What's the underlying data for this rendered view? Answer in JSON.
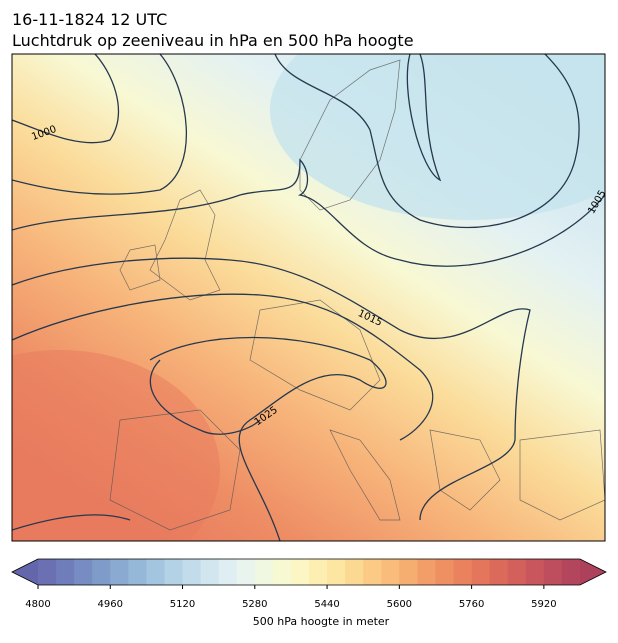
{
  "header": {
    "title_line1": "16-11-1824 12 UTC",
    "title_line2": "Luchtdruk op zeeniveau in hPa en 500 hPa hoogte"
  },
  "isobar_labels": [
    1000,
    1005,
    1015,
    1025
  ],
  "colorbar": {
    "label": "500 hPa hoogte in meter",
    "lim": [
      4800,
      6000
    ],
    "ticks": [
      4800,
      4960,
      5120,
      5280,
      5440,
      5600,
      5760,
      5920
    ],
    "colors": [
      "#6a70b2",
      "#6f7dba",
      "#768cc2",
      "#7f9bc9",
      "#8aaad1",
      "#96b8d8",
      "#a4c5df",
      "#b3d2e6",
      "#c3dcec",
      "#d2e6f0",
      "#dfeef2",
      "#e9f4ee",
      "#f1f8e2",
      "#f7f9d3",
      "#fbf6c3",
      "#fdefb2",
      "#fde5a2",
      "#fcd993",
      "#fbcb85",
      "#f9bc7a",
      "#f6ad70",
      "#f39e68",
      "#ef9062",
      "#ea835d",
      "#e4765b",
      "#dc6a5a",
      "#d3605b",
      "#c9565c",
      "#be4e5d",
      "#b3465d"
    ],
    "under": "#6366ab",
    "over": "#ad405b"
  }
}
